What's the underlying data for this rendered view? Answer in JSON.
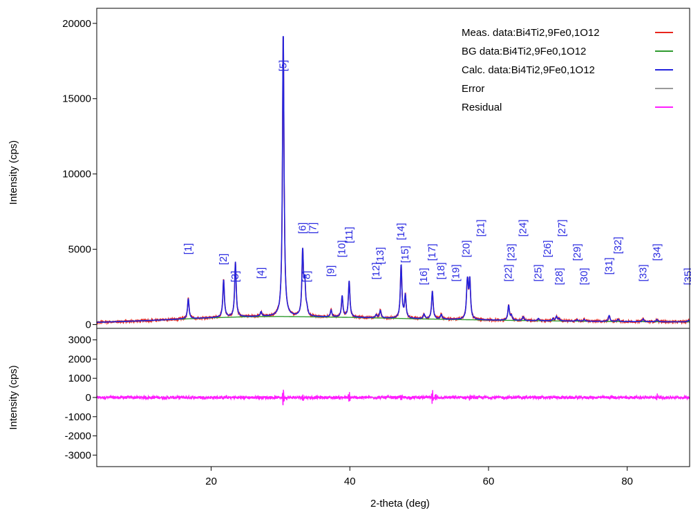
{
  "chart_data": {
    "type": "line",
    "xlabel": "2-theta (deg)",
    "x_ticks": [
      20,
      40,
      60,
      80
    ],
    "xlim": [
      3.5,
      89
    ],
    "colors": {
      "measured": "#e8241c",
      "background": "#2e9a2e",
      "calculated": "#2222dd",
      "error": "#9a9a9a",
      "residual": "#ff1dff"
    },
    "panels": [
      {
        "ylabel": "Intensity (cps)",
        "ylim": [
          -250,
          21000
        ],
        "y_ticks": [
          0,
          5000,
          10000,
          15000,
          20000
        ],
        "y_tick_labels": [
          "0",
          "5000",
          "10000",
          "15000",
          "20000"
        ]
      },
      {
        "ylabel": "Intensity (cps)",
        "ylim": [
          -3600,
          3600
        ],
        "y_ticks": [
          -3000,
          -2000,
          -1000,
          0,
          1000,
          2000,
          3000
        ],
        "y_tick_labels": [
          "-3000",
          "-2000",
          "-1000",
          "0",
          "1000",
          "2000",
          "3000"
        ]
      }
    ],
    "legend": {
      "placement": "top-right",
      "entries": [
        {
          "label": "Meas. data:Bi4Ti2,9Fe0,1O12",
          "series": "measured"
        },
        {
          "label": "BG data:Bi4Ti2,9Fe0,1O12",
          "series": "background"
        },
        {
          "label": "Calc. data:Bi4Ti2,9Fe0,1O12",
          "series": "calculated"
        },
        {
          "label": "Error",
          "series": "error"
        },
        {
          "label": "Residual",
          "series": "residual"
        }
      ]
    },
    "background": {
      "x": [
        3.5,
        10,
        20,
        25,
        30,
        40,
        50,
        60,
        70,
        80,
        89
      ],
      "y": [
        150,
        250,
        450,
        520,
        540,
        480,
        380,
        300,
        240,
        200,
        180
      ]
    },
    "peaks": [
      {
        "x": 16.7,
        "height": 1350,
        "label": "[1]"
      },
      {
        "x": 21.8,
        "height": 2500,
        "label": "[2]"
      },
      {
        "x": 23.5,
        "height": 3650,
        "label": "[3]"
      },
      {
        "x": 27.2,
        "height": 300,
        "label": "[4]"
      },
      {
        "x": 30.4,
        "height": 19000,
        "label": "[5]"
      },
      {
        "x": 33.2,
        "height": 4250,
        "label": "[6]"
      },
      {
        "x": 33.5,
        "height": 2000,
        "label": "[7]"
      },
      {
        "x": 33.8,
        "height": 400,
        "label": "[8]"
      },
      {
        "x": 37.3,
        "height": 450,
        "label": "[9]"
      },
      {
        "x": 38.9,
        "height": 1400,
        "label": "[10]"
      },
      {
        "x": 39.9,
        "height": 2400,
        "label": "[11]"
      },
      {
        "x": 43.8,
        "height": 200,
        "label": "[12]"
      },
      {
        "x": 44.4,
        "height": 500,
        "label": "[13]"
      },
      {
        "x": 47.4,
        "height": 3550,
        "label": "[14]"
      },
      {
        "x": 48.0,
        "height": 1500,
        "label": "[15]"
      },
      {
        "x": 50.7,
        "height": 300,
        "label": "[16]"
      },
      {
        "x": 51.9,
        "height": 1850,
        "label": "[17]"
      },
      {
        "x": 53.2,
        "height": 300,
        "label": "[18]"
      },
      {
        "x": 56.9,
        "height": 1300,
        "label": "[19]"
      },
      {
        "x": 57.0,
        "height": 1600,
        "label": "[20]"
      },
      {
        "x": 57.3,
        "height": 2500,
        "label": "[21]"
      },
      {
        "x": 62.9,
        "height": 1000,
        "label": "[22]"
      },
      {
        "x": 63.3,
        "height": 300,
        "label": "[23]"
      },
      {
        "x": 65.0,
        "height": 250,
        "label": "[24]"
      },
      {
        "x": 67.2,
        "height": 150,
        "label": "[25]"
      },
      {
        "x": 69.3,
        "height": 150,
        "label": "[26]"
      },
      {
        "x": 69.8,
        "height": 300,
        "label": "[27]"
      },
      {
        "x": 70.2,
        "height": 150,
        "label": "[28]"
      },
      {
        "x": 72.8,
        "height": 100,
        "label": "[29]"
      },
      {
        "x": 73.8,
        "height": 120,
        "label": "[30]"
      },
      {
        "x": 77.4,
        "height": 400,
        "label": "[31]"
      },
      {
        "x": 78.7,
        "height": 150,
        "label": "[32]"
      },
      {
        "x": 82.3,
        "height": 180,
        "label": "[33]"
      },
      {
        "x": 84.3,
        "height": 150,
        "label": "[34]"
      },
      {
        "x": 88.8,
        "height": 100,
        "label": "[35]"
      }
    ],
    "residual_spikes": [
      {
        "x": 30.4,
        "amplitude": 650
      },
      {
        "x": 33.2,
        "amplitude": 250
      },
      {
        "x": 39.9,
        "amplitude": 300
      },
      {
        "x": 47.4,
        "amplitude": 200
      },
      {
        "x": 51.9,
        "amplitude": 350
      },
      {
        "x": 52.4,
        "amplitude": 250
      },
      {
        "x": 57.3,
        "amplitude": 150
      },
      {
        "x": 84.3,
        "amplitude": 150
      }
    ]
  }
}
